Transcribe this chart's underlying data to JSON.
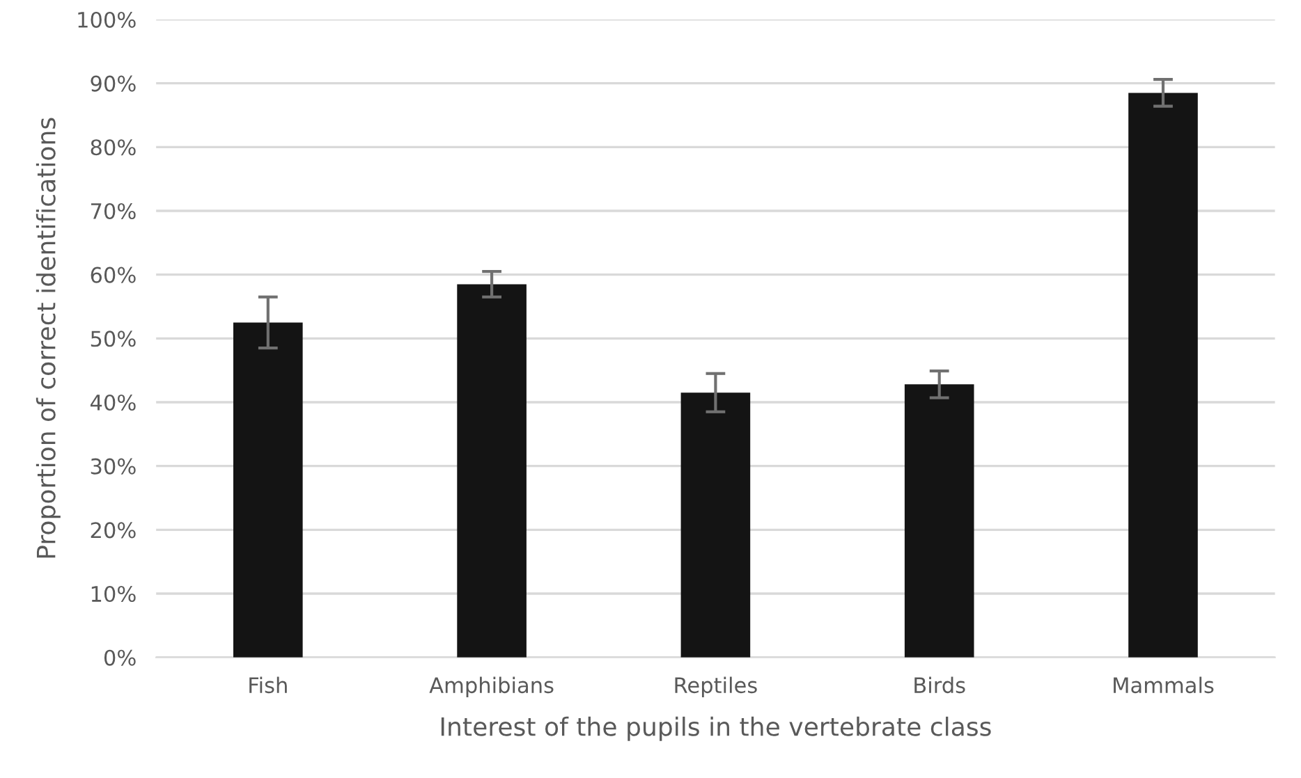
{
  "chart_data": {
    "type": "bar",
    "xlabel": "Interest of the pupils in the vertebrate class",
    "ylabel": "Proportion of correct identifications",
    "categories": [
      "Fish",
      "Amphibians",
      "Reptiles",
      "Birds",
      "Mammals"
    ],
    "values": [
      52.5,
      58.5,
      41.5,
      42.8,
      88.5
    ],
    "errors": [
      4,
      2,
      3,
      2.1,
      2.1
    ],
    "color": "#141414",
    "ylim": [
      0,
      100
    ],
    "yticks": [
      {
        "value": 0,
        "label": "0%"
      },
      {
        "value": 10,
        "label": "10%"
      },
      {
        "value": 20,
        "label": "20%"
      },
      {
        "value": 30,
        "label": "30%"
      },
      {
        "value": 40,
        "label": "40%"
      },
      {
        "value": 50,
        "label": "50%"
      },
      {
        "value": 60,
        "label": "60%"
      },
      {
        "value": 70,
        "label": "70%"
      },
      {
        "value": 80,
        "label": "80%"
      },
      {
        "value": 90,
        "label": "90%"
      },
      {
        "value": 100,
        "label": "100%"
      }
    ],
    "grid": "y"
  }
}
